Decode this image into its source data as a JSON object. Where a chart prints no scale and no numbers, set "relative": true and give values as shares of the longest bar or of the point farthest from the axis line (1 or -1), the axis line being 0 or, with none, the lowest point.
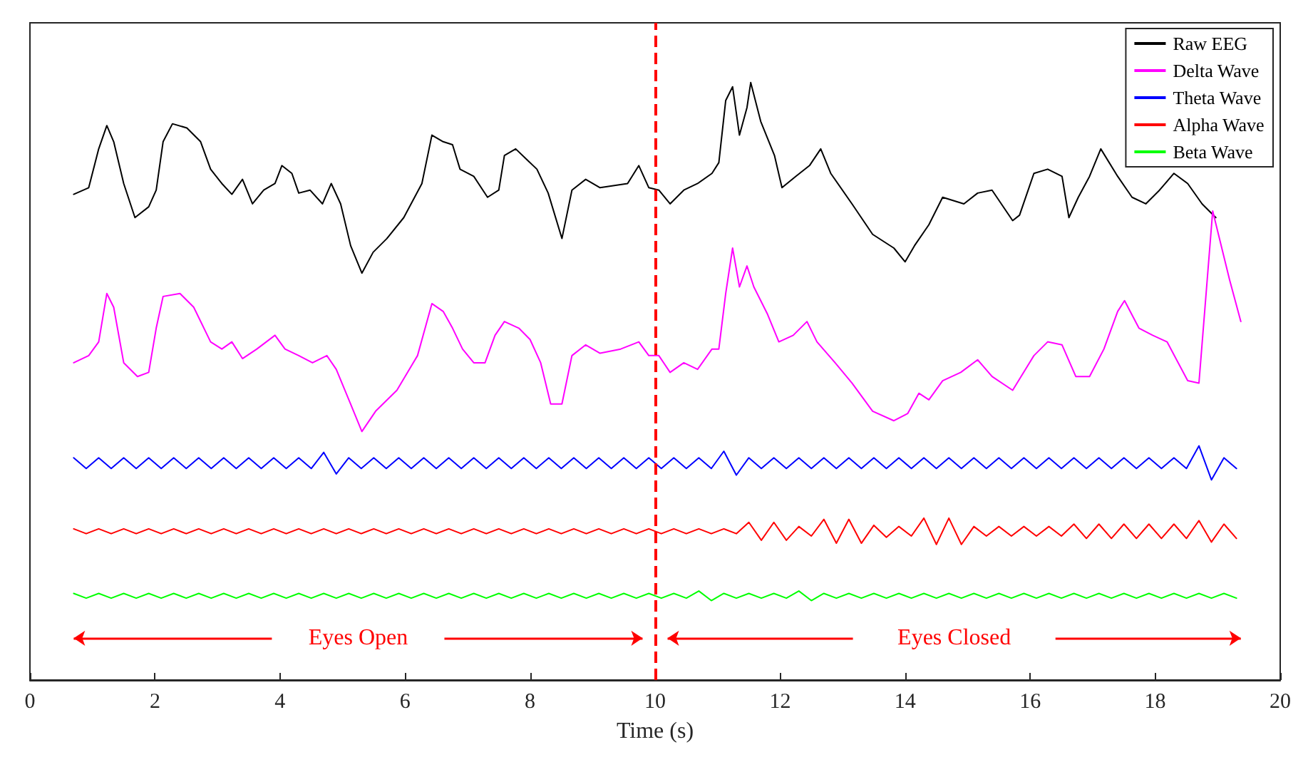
{
  "chart_data": {
    "type": "line",
    "xlabel": "Time (s)",
    "relative": true,
    "xlim": [
      0,
      20
    ],
    "xticks": [
      0,
      2,
      4,
      6,
      8,
      10,
      12,
      14,
      16,
      18,
      20
    ],
    "tick_labels": "x",
    "grid": false,
    "legend": "top right",
    "marker": "none",
    "line_style": "solid",
    "x": [
      0.7,
      0.9,
      1.1,
      1.3,
      1.5,
      1.7,
      1.9,
      2.1,
      2.3,
      2.5,
      2.7,
      2.9,
      3.1,
      3.3,
      3.5,
      3.7,
      3.9,
      4.1,
      4.3,
      4.5,
      4.7,
      4.9,
      5.1,
      5.3,
      5.5,
      5.7,
      5.9,
      6.1,
      6.3,
      6.5,
      6.7,
      6.9,
      7.1,
      7.3,
      7.5,
      7.7,
      7.9,
      8.1,
      8.3,
      8.5,
      8.7,
      8.9,
      9.1,
      9.3,
      9.5,
      9.7,
      9.9,
      10.1,
      10.3,
      10.5,
      10.7,
      10.9,
      11.1,
      11.3,
      11.5,
      11.7,
      11.9,
      12.1,
      12.3,
      12.5,
      12.7,
      12.9,
      13.1,
      13.3,
      13.5,
      13.7,
      13.9,
      14.1,
      14.3,
      14.5,
      14.7,
      14.9,
      15.1,
      15.3,
      15.5,
      15.7,
      15.9,
      16.1,
      16.3,
      16.5,
      16.7,
      16.9,
      17.1,
      17.3,
      17.5,
      17.7,
      17.9,
      18.1,
      18.3,
      18.5,
      18.7,
      18.9,
      19.1,
      19.3
    ],
    "series": [
      {
        "name": "Raw EEG",
        "color": "#000000",
        "x": [
          0.7,
          0.94,
          1.1,
          1.23,
          1.34,
          1.5,
          1.68,
          1.9,
          2.02,
          2.13,
          2.28,
          2.51,
          2.73,
          2.89,
          3.07,
          3.23,
          3.4,
          3.56,
          3.74,
          3.92,
          4.03,
          4.19,
          4.3,
          4.48,
          4.68,
          4.82,
          4.97,
          5.13,
          5.31,
          5.49,
          5.71,
          5.98,
          6.27,
          6.43,
          6.61,
          6.76,
          6.88,
          7.1,
          7.32,
          7.5,
          7.59,
          7.77,
          7.95,
          8.11,
          8.29,
          8.51,
          8.67,
          8.89,
          9.12,
          9.56,
          9.74,
          9.9,
          10.06,
          10.24,
          10.46,
          10.68,
          10.91,
          11.02,
          11.13,
          11.24,
          11.35,
          11.47,
          11.53,
          11.69,
          11.91,
          12.03,
          12.25,
          12.47,
          12.65,
          12.81,
          13.15,
          13.48,
          13.82,
          14.0,
          14.15,
          14.38,
          14.6,
          14.94,
          15.16,
          15.39,
          15.72,
          15.83,
          16.06,
          16.28,
          16.51,
          16.62,
          16.77,
          16.95,
          17.13,
          17.4,
          17.63,
          17.85,
          18.07,
          18.3,
          18.52,
          18.75,
          18.97
        ],
        "values": [
          0.813,
          0.824,
          0.889,
          0.928,
          0.901,
          0.831,
          0.774,
          0.792,
          0.82,
          0.901,
          0.931,
          0.924,
          0.901,
          0.855,
          0.831,
          0.813,
          0.838,
          0.797,
          0.82,
          0.831,
          0.861,
          0.848,
          0.815,
          0.82,
          0.797,
          0.831,
          0.797,
          0.727,
          0.681,
          0.716,
          0.739,
          0.774,
          0.831,
          0.912,
          0.901,
          0.896,
          0.855,
          0.843,
          0.808,
          0.82,
          0.878,
          0.889,
          0.871,
          0.855,
          0.815,
          0.739,
          0.82,
          0.838,
          0.824,
          0.831,
          0.861,
          0.824,
          0.82,
          0.797,
          0.82,
          0.831,
          0.848,
          0.866,
          0.97,
          0.993,
          0.912,
          0.958,
          1.0,
          0.935,
          0.878,
          0.824,
          0.843,
          0.861,
          0.889,
          0.848,
          0.797,
          0.746,
          0.723,
          0.7,
          0.727,
          0.762,
          0.808,
          0.797,
          0.815,
          0.82,
          0.769,
          0.778,
          0.848,
          0.855,
          0.843,
          0.774,
          0.808,
          0.843,
          0.889,
          0.843,
          0.808,
          0.797,
          0.82,
          0.848,
          0.831,
          0.797,
          0.774
        ]
      },
      {
        "name": "Delta Wave",
        "color": "#ff00ff",
        "x": [
          0.7,
          0.94,
          1.1,
          1.23,
          1.34,
          1.5,
          1.72,
          1.9,
          2.02,
          2.13,
          2.4,
          2.62,
          2.89,
          3.07,
          3.23,
          3.4,
          3.63,
          3.92,
          4.08,
          4.3,
          4.52,
          4.75,
          4.9,
          5.13,
          5.31,
          5.53,
          5.87,
          6.2,
          6.43,
          6.61,
          6.76,
          6.92,
          7.1,
          7.28,
          7.44,
          7.59,
          7.82,
          8.0,
          8.17,
          8.33,
          8.51,
          8.67,
          8.89,
          9.12,
          9.45,
          9.74,
          9.9,
          10.06,
          10.24,
          10.46,
          10.68,
          10.91,
          11.02,
          11.13,
          11.24,
          11.35,
          11.47,
          11.58,
          11.8,
          11.98,
          12.21,
          12.43,
          12.59,
          12.88,
          13.15,
          13.48,
          13.82,
          14.04,
          14.22,
          14.38,
          14.6,
          14.89,
          15.16,
          15.39,
          15.72,
          16.06,
          16.28,
          16.51,
          16.73,
          16.95,
          17.18,
          17.4,
          17.51,
          17.74,
          17.96,
          18.19,
          18.52,
          18.7,
          18.92,
          19.19,
          19.37
        ],
        "values": [
          0.531,
          0.543,
          0.566,
          0.647,
          0.624,
          0.531,
          0.508,
          0.515,
          0.589,
          0.642,
          0.647,
          0.624,
          0.566,
          0.554,
          0.566,
          0.538,
          0.554,
          0.577,
          0.554,
          0.543,
          0.531,
          0.543,
          0.52,
          0.462,
          0.416,
          0.45,
          0.485,
          0.543,
          0.63,
          0.617,
          0.589,
          0.554,
          0.531,
          0.531,
          0.577,
          0.6,
          0.589,
          0.57,
          0.531,
          0.462,
          0.462,
          0.543,
          0.561,
          0.547,
          0.554,
          0.566,
          0.543,
          0.543,
          0.515,
          0.531,
          0.52,
          0.554,
          0.554,
          0.647,
          0.723,
          0.658,
          0.693,
          0.658,
          0.612,
          0.566,
          0.577,
          0.6,
          0.566,
          0.531,
          0.497,
          0.45,
          0.434,
          0.446,
          0.48,
          0.469,
          0.501,
          0.515,
          0.536,
          0.508,
          0.485,
          0.543,
          0.566,
          0.561,
          0.508,
          0.508,
          0.554,
          0.617,
          0.635,
          0.589,
          0.577,
          0.566,
          0.501,
          0.497,
          0.785,
          0.67,
          0.6
        ]
      },
      {
        "name": "Theta Wave",
        "color": "#0000ff",
        "values": [
          0.372,
          0.354,
          0.372,
          0.354,
          0.372,
          0.354,
          0.372,
          0.354,
          0.372,
          0.354,
          0.372,
          0.354,
          0.372,
          0.354,
          0.372,
          0.354,
          0.372,
          0.354,
          0.372,
          0.354,
          0.381,
          0.345,
          0.372,
          0.354,
          0.372,
          0.354,
          0.372,
          0.354,
          0.372,
          0.354,
          0.372,
          0.354,
          0.372,
          0.354,
          0.372,
          0.354,
          0.372,
          0.354,
          0.372,
          0.354,
          0.372,
          0.354,
          0.372,
          0.354,
          0.372,
          0.354,
          0.372,
          0.354,
          0.372,
          0.354,
          0.372,
          0.354,
          0.383,
          0.343,
          0.372,
          0.354,
          0.372,
          0.354,
          0.372,
          0.354,
          0.372,
          0.354,
          0.372,
          0.354,
          0.372,
          0.354,
          0.372,
          0.354,
          0.372,
          0.354,
          0.372,
          0.354,
          0.372,
          0.354,
          0.372,
          0.354,
          0.372,
          0.354,
          0.372,
          0.354,
          0.372,
          0.354,
          0.372,
          0.354,
          0.372,
          0.354,
          0.372,
          0.354,
          0.372,
          0.354,
          0.392,
          0.335,
          0.372,
          0.354
        ]
      },
      {
        "name": "Alpha Wave",
        "color": "#ff0000",
        "values": [
          0.253,
          0.245,
          0.253,
          0.245,
          0.253,
          0.245,
          0.253,
          0.245,
          0.253,
          0.245,
          0.253,
          0.245,
          0.253,
          0.245,
          0.253,
          0.245,
          0.253,
          0.245,
          0.253,
          0.245,
          0.253,
          0.245,
          0.253,
          0.245,
          0.253,
          0.245,
          0.253,
          0.245,
          0.253,
          0.245,
          0.253,
          0.245,
          0.253,
          0.245,
          0.253,
          0.245,
          0.253,
          0.245,
          0.253,
          0.245,
          0.253,
          0.245,
          0.253,
          0.245,
          0.253,
          0.245,
          0.253,
          0.245,
          0.253,
          0.245,
          0.253,
          0.245,
          0.253,
          0.245,
          0.264,
          0.234,
          0.264,
          0.234,
          0.257,
          0.241,
          0.269,
          0.229,
          0.269,
          0.229,
          0.259,
          0.239,
          0.257,
          0.241,
          0.271,
          0.227,
          0.271,
          0.227,
          0.257,
          0.241,
          0.257,
          0.241,
          0.257,
          0.241,
          0.257,
          0.241,
          0.261,
          0.237,
          0.261,
          0.237,
          0.261,
          0.237,
          0.261,
          0.237,
          0.261,
          0.237,
          0.267,
          0.231,
          0.261,
          0.237
        ]
      },
      {
        "name": "Beta Wave",
        "color": "#00ff00",
        "values": [
          0.145,
          0.137,
          0.145,
          0.137,
          0.145,
          0.137,
          0.145,
          0.137,
          0.145,
          0.137,
          0.145,
          0.137,
          0.145,
          0.137,
          0.145,
          0.137,
          0.145,
          0.137,
          0.145,
          0.137,
          0.145,
          0.137,
          0.145,
          0.137,
          0.145,
          0.137,
          0.145,
          0.137,
          0.145,
          0.137,
          0.145,
          0.137,
          0.145,
          0.137,
          0.145,
          0.137,
          0.145,
          0.137,
          0.145,
          0.137,
          0.145,
          0.137,
          0.145,
          0.137,
          0.145,
          0.137,
          0.145,
          0.137,
          0.145,
          0.137,
          0.149,
          0.133,
          0.145,
          0.137,
          0.145,
          0.137,
          0.145,
          0.137,
          0.149,
          0.133,
          0.145,
          0.137,
          0.145,
          0.137,
          0.145,
          0.137,
          0.145,
          0.137,
          0.145,
          0.137,
          0.145,
          0.137,
          0.145,
          0.137,
          0.145,
          0.137,
          0.145,
          0.137,
          0.145,
          0.137,
          0.145,
          0.137,
          0.145,
          0.137,
          0.145,
          0.137,
          0.145,
          0.137,
          0.145,
          0.137,
          0.145,
          0.137,
          0.145,
          0.137
        ]
      }
    ],
    "ref_lines": [
      {
        "axis": "x",
        "value": 10,
        "color": "#ff0000",
        "line_style": "dashed"
      }
    ],
    "annotations": [
      "Eyes Open",
      "Eyes Closed"
    ]
  }
}
